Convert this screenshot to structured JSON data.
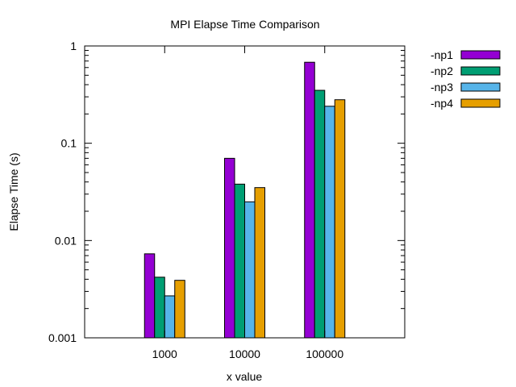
{
  "chart_data": {
    "type": "bar",
    "title": "MPI Elapse Time Comparison",
    "xlabel": "x value",
    "ylabel": "Elapse Time (s)",
    "y_scale": "log",
    "ylim": [
      0.001,
      1
    ],
    "yticks": [
      "0.001",
      "0.01",
      "0.1",
      "1"
    ],
    "categories": [
      "1000",
      "10000",
      "100000"
    ],
    "legend_position": "outside top-right",
    "grid": false,
    "series": [
      {
        "name": "-np1",
        "color": "#9400d3",
        "values": [
          0.0073,
          0.07,
          0.68
        ]
      },
      {
        "name": "-np2",
        "color": "#009e73",
        "values": [
          0.0042,
          0.038,
          0.35
        ]
      },
      {
        "name": "-np3",
        "color": "#56b4e9",
        "values": [
          0.0027,
          0.025,
          0.24
        ]
      },
      {
        "name": "-np4",
        "color": "#e69f00",
        "values": [
          0.0039,
          0.035,
          0.28
        ]
      }
    ]
  }
}
